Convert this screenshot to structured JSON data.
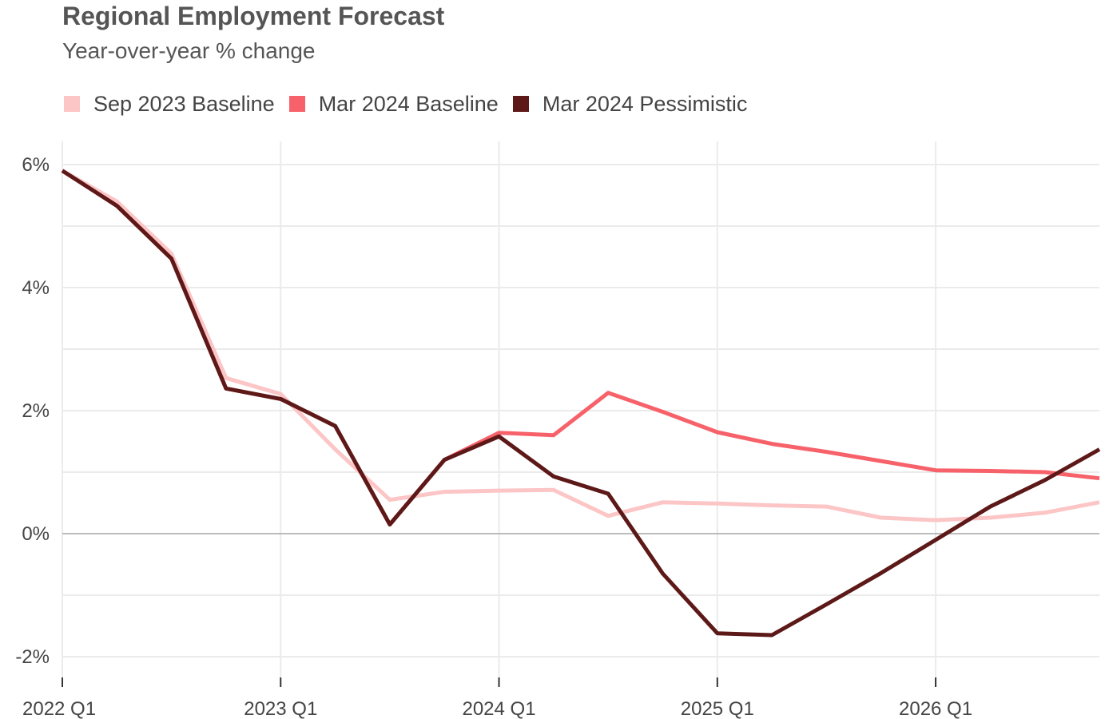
{
  "title": "Regional Employment Forecast",
  "subtitle": "Year-over-year % change",
  "chart_data": {
    "type": "line",
    "title": "Regional Employment Forecast",
    "subtitle": "Year-over-year % change",
    "xlabel": "",
    "ylabel": "",
    "x": [
      "2022 Q1",
      "2022 Q2",
      "2022 Q3",
      "2022 Q4",
      "2023 Q1",
      "2023 Q2",
      "2023 Q3",
      "2023 Q4",
      "2024 Q1",
      "2024 Q2",
      "2024 Q3",
      "2024 Q4",
      "2025 Q1",
      "2025 Q2",
      "2025 Q3",
      "2025 Q4",
      "2026 Q1",
      "2026 Q2",
      "2026 Q3",
      "2026 Q4"
    ],
    "x_tick_labels": [
      "2022 Q1",
      "2023 Q1",
      "2024 Q1",
      "2025 Q1",
      "2026 Q1"
    ],
    "y_ticks": [
      6,
      4,
      2,
      0,
      -2
    ],
    "y_tick_labels": [
      "6%",
      "4%",
      "2%",
      "0%",
      "-2%"
    ],
    "ylim": [
      -2.3,
      6.4
    ],
    "grid": true,
    "legend_position": "top",
    "series": [
      {
        "name": "Sep 2023 Baseline",
        "color": "#fcc5c6",
        "values": [
          5.9,
          5.4,
          4.55,
          2.53,
          2.27,
          1.37,
          0.55,
          0.68,
          0.7,
          0.71,
          0.29,
          0.51,
          0.49,
          0.46,
          0.44,
          0.26,
          0.22,
          0.26,
          0.34,
          0.51
        ]
      },
      {
        "name": "Mar 2024 Baseline",
        "color": "#f7626a",
        "values": [
          5.9,
          5.33,
          4.47,
          2.36,
          2.19,
          1.75,
          0.15,
          1.2,
          1.64,
          1.6,
          2.29,
          1.98,
          1.65,
          1.46,
          1.33,
          1.18,
          1.03,
          1.02,
          1.0,
          0.9
        ]
      },
      {
        "name": "Mar 2024 Pessimistic",
        "color": "#5d1818",
        "values": [
          5.9,
          5.33,
          4.47,
          2.36,
          2.19,
          1.75,
          0.15,
          1.2,
          1.58,
          0.93,
          0.65,
          -0.65,
          -1.62,
          -1.65,
          -1.15,
          -0.64,
          -0.1,
          0.44,
          0.87,
          1.37
        ]
      }
    ]
  }
}
